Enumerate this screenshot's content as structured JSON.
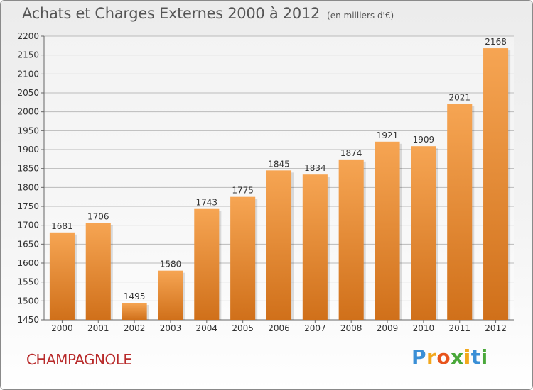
{
  "header": {
    "title": "Achats et Charges Externes 2000 à 2012",
    "subtitle": "(en milliers d'€)"
  },
  "footer": {
    "town": "CHAMPAGNOLE",
    "logo": "Proxiti"
  },
  "colors": {
    "bar_top": "#f6a553",
    "bar_bottom": "#d0701a",
    "grid": "#bbbbbb",
    "title": "#555555",
    "town": "#b82a2a"
  },
  "chart_data": {
    "type": "bar",
    "title": "Achats et Charges Externes 2000 à 2012",
    "subtitle": "(en milliers d'€)",
    "categories": [
      "2000",
      "2001",
      "2002",
      "2003",
      "2004",
      "2005",
      "2006",
      "2007",
      "2008",
      "2009",
      "2010",
      "2011",
      "2012"
    ],
    "values": [
      1681,
      1706,
      1495,
      1580,
      1743,
      1775,
      1845,
      1834,
      1874,
      1921,
      1909,
      2021,
      2168
    ],
    "ylim": [
      1450,
      2200
    ],
    "yticks": [
      1450,
      1500,
      1550,
      1600,
      1650,
      1700,
      1750,
      1800,
      1850,
      1900,
      1950,
      2000,
      2050,
      2100,
      2150,
      2200
    ],
    "grid": true,
    "data_labels": true,
    "xlabel": "",
    "ylabel": ""
  }
}
